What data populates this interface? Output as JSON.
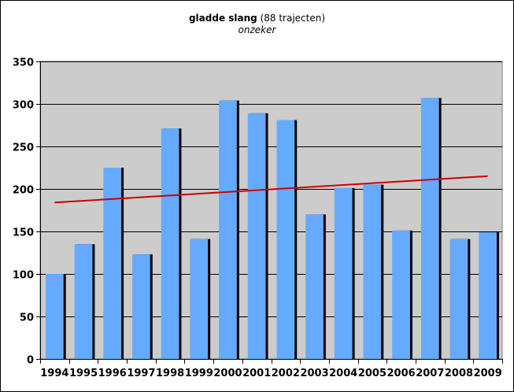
{
  "chart_data": {
    "type": "bar",
    "title_bold": "gladde slang",
    "title_rest": " (88 trajecten)",
    "subtitle": "onzeker",
    "xlabel": "",
    "ylabel": "",
    "categories": [
      "1994",
      "1995",
      "1996",
      "1997",
      "1998",
      "1999",
      "2000",
      "2001",
      "2002",
      "2003",
      "2004",
      "2005",
      "2006",
      "2007",
      "2008",
      "2009"
    ],
    "values": [
      100,
      135,
      225,
      123,
      271,
      141,
      304,
      289,
      281,
      170,
      201,
      205,
      151,
      307,
      141,
      149
    ],
    "ylim": [
      0,
      350
    ],
    "yticks": [
      "0",
      "50",
      "100",
      "150",
      "200",
      "250",
      "300",
      "350"
    ],
    "grid": true,
    "trendline": {
      "start": 184,
      "end": 215
    },
    "colors": {
      "bar": "#66aaff",
      "bar_shadow": "#000000",
      "plot_bg": "#cccccc",
      "trend": "#cc0000",
      "grid": "#000000"
    }
  }
}
